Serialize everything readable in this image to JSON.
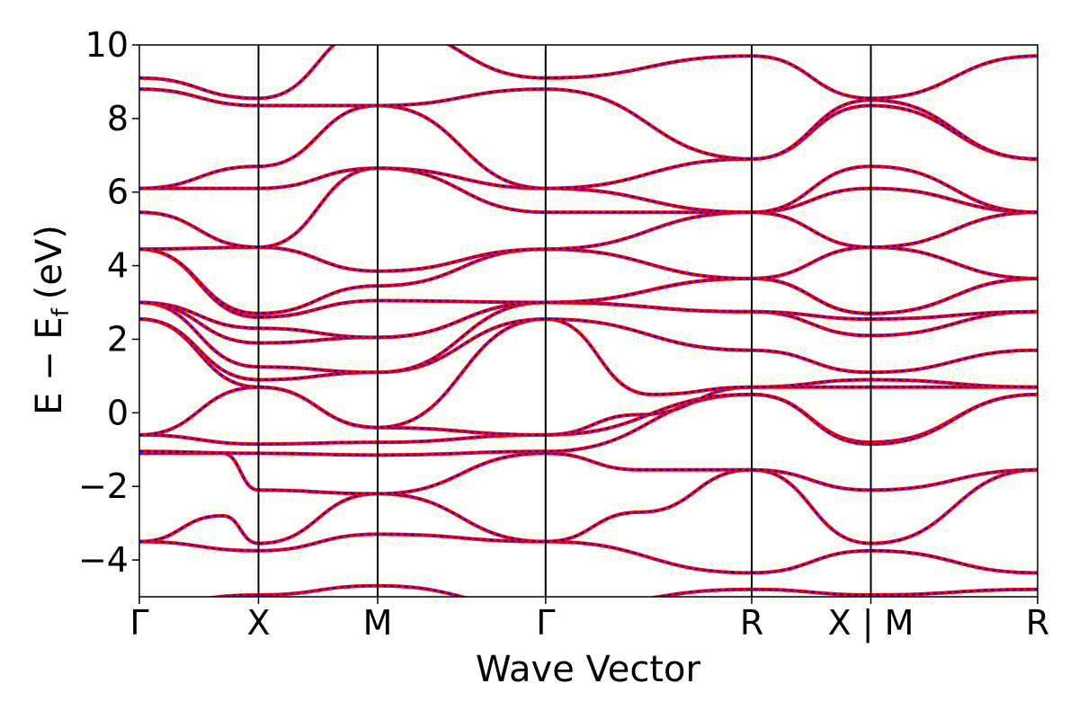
{
  "chart_data": {
    "type": "line",
    "title": "",
    "xlabel": "Wave Vector",
    "ylabel_main": "E − E",
    "ylabel_sub": "f",
    "ylabel_unit": "(eV)",
    "ylim": [
      -5,
      10
    ],
    "yticks": [
      -4,
      -2,
      0,
      2,
      4,
      6,
      8,
      10
    ],
    "ytick_labels": [
      "−4",
      "−2",
      "0",
      "2",
      "4",
      "6",
      "8",
      "10"
    ],
    "xlim": [
      0,
      6.57
    ],
    "kpoints": [
      {
        "label": "Γ",
        "x": 0.0
      },
      {
        "label": "X",
        "x": 1.0
      },
      {
        "label": "M",
        "x": 2.0
      },
      {
        "label": "Γ",
        "x": 3.41
      },
      {
        "label": "R",
        "x": 5.14
      },
      {
        "label": "X | M",
        "x": 6.14
      },
      {
        "label": "R",
        "x": 7.54
      }
    ],
    "grid": false,
    "legend": "none",
    "colors": {
      "band_solid": "#ff0000",
      "band_dashed": "#0000ff",
      "axis": "#000000"
    },
    "series": [
      {
        "x": [
          0,
          1,
          2,
          3.41,
          5.14,
          6.14,
          7.54
        ],
        "values": [
          -5.2,
          -4.95,
          -4.7,
          -5.3,
          -4.8,
          -4.95,
          -4.8
        ]
      },
      {
        "x": [
          0,
          1,
          2,
          3.41,
          5.14,
          6.14,
          7.54
        ],
        "values": [
          -3.5,
          -3.75,
          -3.3,
          -3.5,
          -4.35,
          -3.75,
          -4.35
        ]
      },
      {
        "x": [
          0,
          0.7,
          1,
          2,
          3.41,
          4.2,
          5.14,
          6.14,
          7.54
        ],
        "values": [
          -3.5,
          -2.8,
          -3.55,
          -2.2,
          -3.5,
          -2.7,
          -1.55,
          -3.55,
          -1.55
        ]
      },
      {
        "x": [
          0,
          0.7,
          1,
          2,
          3.41,
          4.2,
          5.14,
          6.14,
          7.54
        ],
        "values": [
          -1.1,
          -1.1,
          -2.1,
          -2.2,
          -1.1,
          -1.55,
          -1.55,
          -2.1,
          -1.55
        ]
      },
      {
        "x": [
          0,
          1,
          2,
          3.41,
          5.14,
          6.14,
          7.54
        ],
        "values": [
          -1.05,
          -1.1,
          -1.15,
          -1.05,
          0.5,
          -0.8,
          0.5
        ]
      },
      {
        "x": [
          0,
          1,
          2,
          3.41,
          5.14,
          6.14,
          7.54
        ],
        "values": [
          -0.6,
          -0.85,
          -0.8,
          -0.6,
          0.5,
          -0.85,
          0.5
        ]
      },
      {
        "x": [
          0,
          1,
          2,
          3.41,
          4.2,
          5.14,
          6.14,
          7.54
        ],
        "values": [
          -0.6,
          0.7,
          -0.4,
          -0.6,
          -0.05,
          0.7,
          0.7,
          0.7
        ]
      },
      {
        "x": [
          0,
          1,
          2,
          3.41,
          4.3,
          5.14,
          6.14,
          7.54
        ],
        "values": [
          2.55,
          0.7,
          -0.4,
          2.55,
          0.5,
          0.7,
          0.9,
          0.7
        ]
      },
      {
        "x": [
          0,
          1,
          2,
          3.41,
          5.14,
          6.14,
          7.54
        ],
        "values": [
          2.55,
          0.9,
          1.1,
          2.55,
          1.7,
          1.1,
          1.7
        ]
      },
      {
        "x": [
          0,
          1,
          2,
          3.41,
          5.14,
          6.14,
          7.54
        ],
        "values": [
          3.0,
          1.25,
          1.1,
          3.0,
          2.75,
          2.1,
          2.75
        ]
      },
      {
        "x": [
          0,
          1,
          2,
          3.41,
          5.14,
          6.14,
          7.54
        ],
        "values": [
          3.0,
          1.9,
          2.05,
          3.0,
          2.75,
          2.55,
          2.75
        ]
      },
      {
        "x": [
          0,
          1,
          2,
          3.41,
          5.14,
          6.14,
          7.54
        ],
        "values": [
          3.0,
          2.3,
          2.05,
          3.0,
          3.65,
          2.7,
          3.65
        ]
      },
      {
        "x": [
          0,
          1,
          2,
          3.41,
          5.14,
          6.14,
          7.54
        ],
        "values": [
          4.45,
          2.6,
          3.05,
          3.0,
          3.65,
          2.7,
          3.65
        ]
      },
      {
        "x": [
          0,
          1,
          2,
          3.41,
          5.14,
          6.14,
          7.54
        ],
        "values": [
          4.45,
          2.7,
          3.45,
          4.45,
          3.65,
          4.5,
          3.65
        ]
      },
      {
        "x": [
          0,
          1,
          2,
          3.41,
          5.14,
          6.14,
          7.54
        ],
        "values": [
          4.45,
          4.5,
          3.85,
          4.45,
          5.45,
          4.5,
          5.45
        ]
      },
      {
        "x": [
          0,
          1,
          2,
          3.41,
          5.14,
          6.14,
          7.54
        ],
        "values": [
          5.45,
          4.5,
          6.65,
          5.45,
          5.45,
          6.1,
          5.45
        ]
      },
      {
        "x": [
          0,
          1,
          2,
          3.41,
          5.14,
          6.14,
          7.54
        ],
        "values": [
          6.1,
          6.1,
          6.65,
          6.1,
          5.45,
          6.7,
          5.45
        ]
      },
      {
        "x": [
          0,
          1,
          2,
          3.41,
          5.14,
          6.14,
          7.54
        ],
        "values": [
          6.1,
          6.7,
          8.35,
          6.1,
          6.9,
          8.35,
          6.9
        ]
      },
      {
        "x": [
          0,
          1,
          2,
          3.41,
          5.14,
          6.14,
          7.54
        ],
        "values": [
          8.8,
          8.35,
          8.35,
          8.8,
          6.9,
          8.5,
          6.9
        ]
      },
      {
        "x": [
          0,
          1,
          2,
          3.41,
          5.14,
          6.14,
          7.54
        ],
        "values": [
          9.1,
          8.55,
          10.5,
          9.1,
          9.7,
          8.55,
          9.7
        ]
      }
    ]
  }
}
